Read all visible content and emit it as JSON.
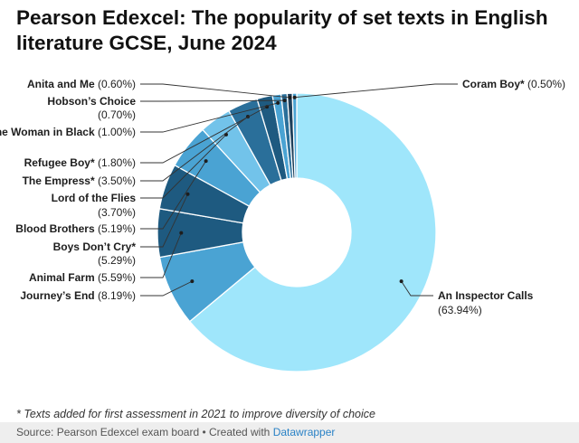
{
  "header": {
    "title": "Pearson Edexcel: The popularity of set texts in English literature GCSE, June 2024"
  },
  "chart_data": {
    "type": "pie",
    "donut": true,
    "categories": [
      "An Inspector Calls",
      "Journey’s End",
      "Animal Farm",
      "Boys Don’t Cry*",
      "Blood Brothers",
      "Lord of the Flies",
      "The Empress*",
      "Refugee Boy*",
      "The Woman in Black",
      "Hobson’s Choice",
      "Anita and Me",
      "Coram Boy*"
    ],
    "values": [
      63.94,
      8.19,
      5.59,
      5.29,
      5.19,
      3.7,
      3.5,
      1.8,
      1.0,
      0.7,
      0.6,
      0.5
    ],
    "value_labels": [
      "(63.94%)",
      "(8.19%)",
      "(5.59%)",
      "(5.29%)",
      "(5.19%)",
      "(3.70%)",
      "(3.50%)",
      "(1.80%)",
      "(1.00%)",
      "(0.70%)",
      "(0.60%)",
      "(0.50%)"
    ],
    "colors": [
      "#9fe6fb",
      "#4aa3d3",
      "#1e5a80",
      "#1e5a80",
      "#4aa3d3",
      "#72c3ea",
      "#2a6f9a",
      "#1e5a80",
      "#4aa3d3",
      "#2a6f9a",
      "#1e3f5a",
      "#4aa3d3"
    ],
    "legend": "none"
  },
  "note": "* Texts added for first assessment in 2021 to improve diversity of choice",
  "footer": {
    "source": "Source: Pearson Edexcel exam board • Created with ",
    "link": "Datawrapper"
  }
}
